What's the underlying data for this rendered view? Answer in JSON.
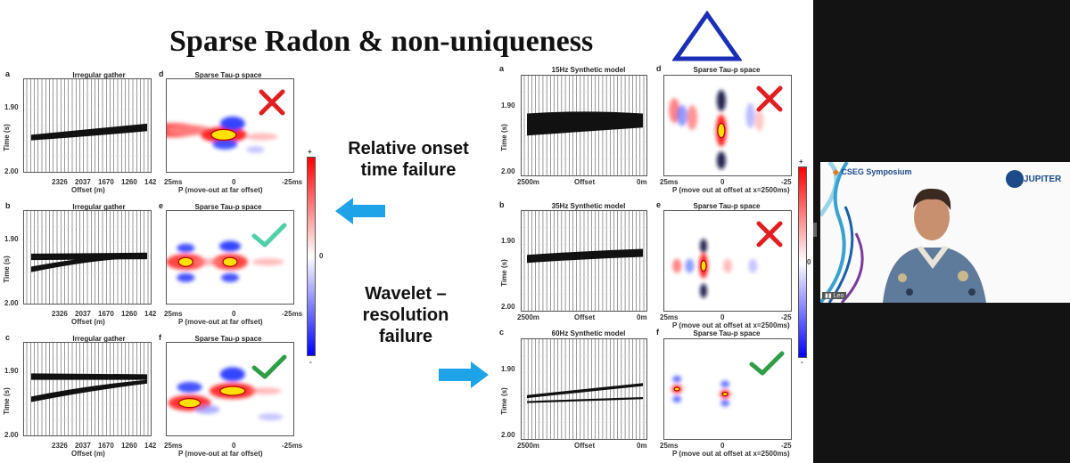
{
  "slide": {
    "title": "Sparse Radon & non-uniqueness",
    "middle_text_top": [
      "Relative onset",
      "time failure"
    ],
    "middle_text_bottom": [
      "Wavelet –",
      "resolution",
      "failure"
    ],
    "left_panels": [
      {
        "letter": "a",
        "title": "Irregular gather"
      },
      {
        "letter": "b",
        "title": "Irregular gather"
      },
      {
        "letter": "c",
        "title": "Irregular gather"
      }
    ],
    "left_tau_panels": [
      {
        "letter": "d",
        "title": "Sparse Tau-p space",
        "mark": "cross"
      },
      {
        "letter": "e",
        "title": "Sparse Tau-p space",
        "mark": "check"
      },
      {
        "letter": "f",
        "title": "Sparse Tau-p space",
        "mark": "check"
      }
    ],
    "left_gather_axis": {
      "y_ticks": [
        "1.90",
        "2.00"
      ],
      "y_label": "Time (s)",
      "x_ticks": [
        "2326",
        "2037",
        "1670",
        "1260",
        "142"
      ],
      "x_label": "Offset (m)"
    },
    "left_tau_axis": {
      "x_ticks": [
        "25ms",
        "0",
        "-25ms"
      ],
      "x_label": "P (move-out at far offset)"
    },
    "left_colorbar": {
      "top": "+",
      "mid": "0",
      "bottom": "-"
    },
    "right_panels": [
      {
        "letter": "a",
        "title": "15Hz Synthetic model"
      },
      {
        "letter": "b",
        "title": "35Hz Synthetic model"
      },
      {
        "letter": "c",
        "title": "60Hz Synthetic model"
      }
    ],
    "right_tau_panels": [
      {
        "letter": "d",
        "title": "Sparse Tau-p space",
        "mark": "cross"
      },
      {
        "letter": "e",
        "title": "Sparse Tau-p space",
        "mark": "cross"
      },
      {
        "letter": "f",
        "title": "Sparse Tau-p space",
        "mark": "check"
      }
    ],
    "right_gather_axis": {
      "y_ticks": [
        "1.90",
        "2.00"
      ],
      "y_label": "Time (s)",
      "x_ticks": [
        "2500m",
        "Offset",
        "0m"
      ]
    },
    "right_tau_axis": {
      "x_ticks": [
        "25ms",
        "0",
        "-25"
      ],
      "x_label": "P (move out at offset at x=2500ms)"
    },
    "right_colorbar": {
      "top": "+",
      "mid": "0",
      "bottom": "-"
    }
  },
  "video": {
    "sponsor": "CSEG Symposium",
    "company": "JUPITER",
    "presenter_tag": "Leo"
  },
  "colors": {
    "triangle": "#1a2fb5",
    "cross": "#e02020",
    "check": "#2e9e45",
    "check_light": "#4fd0a8",
    "arrow": "#1fa3e8",
    "dark_bg": "#131313"
  }
}
